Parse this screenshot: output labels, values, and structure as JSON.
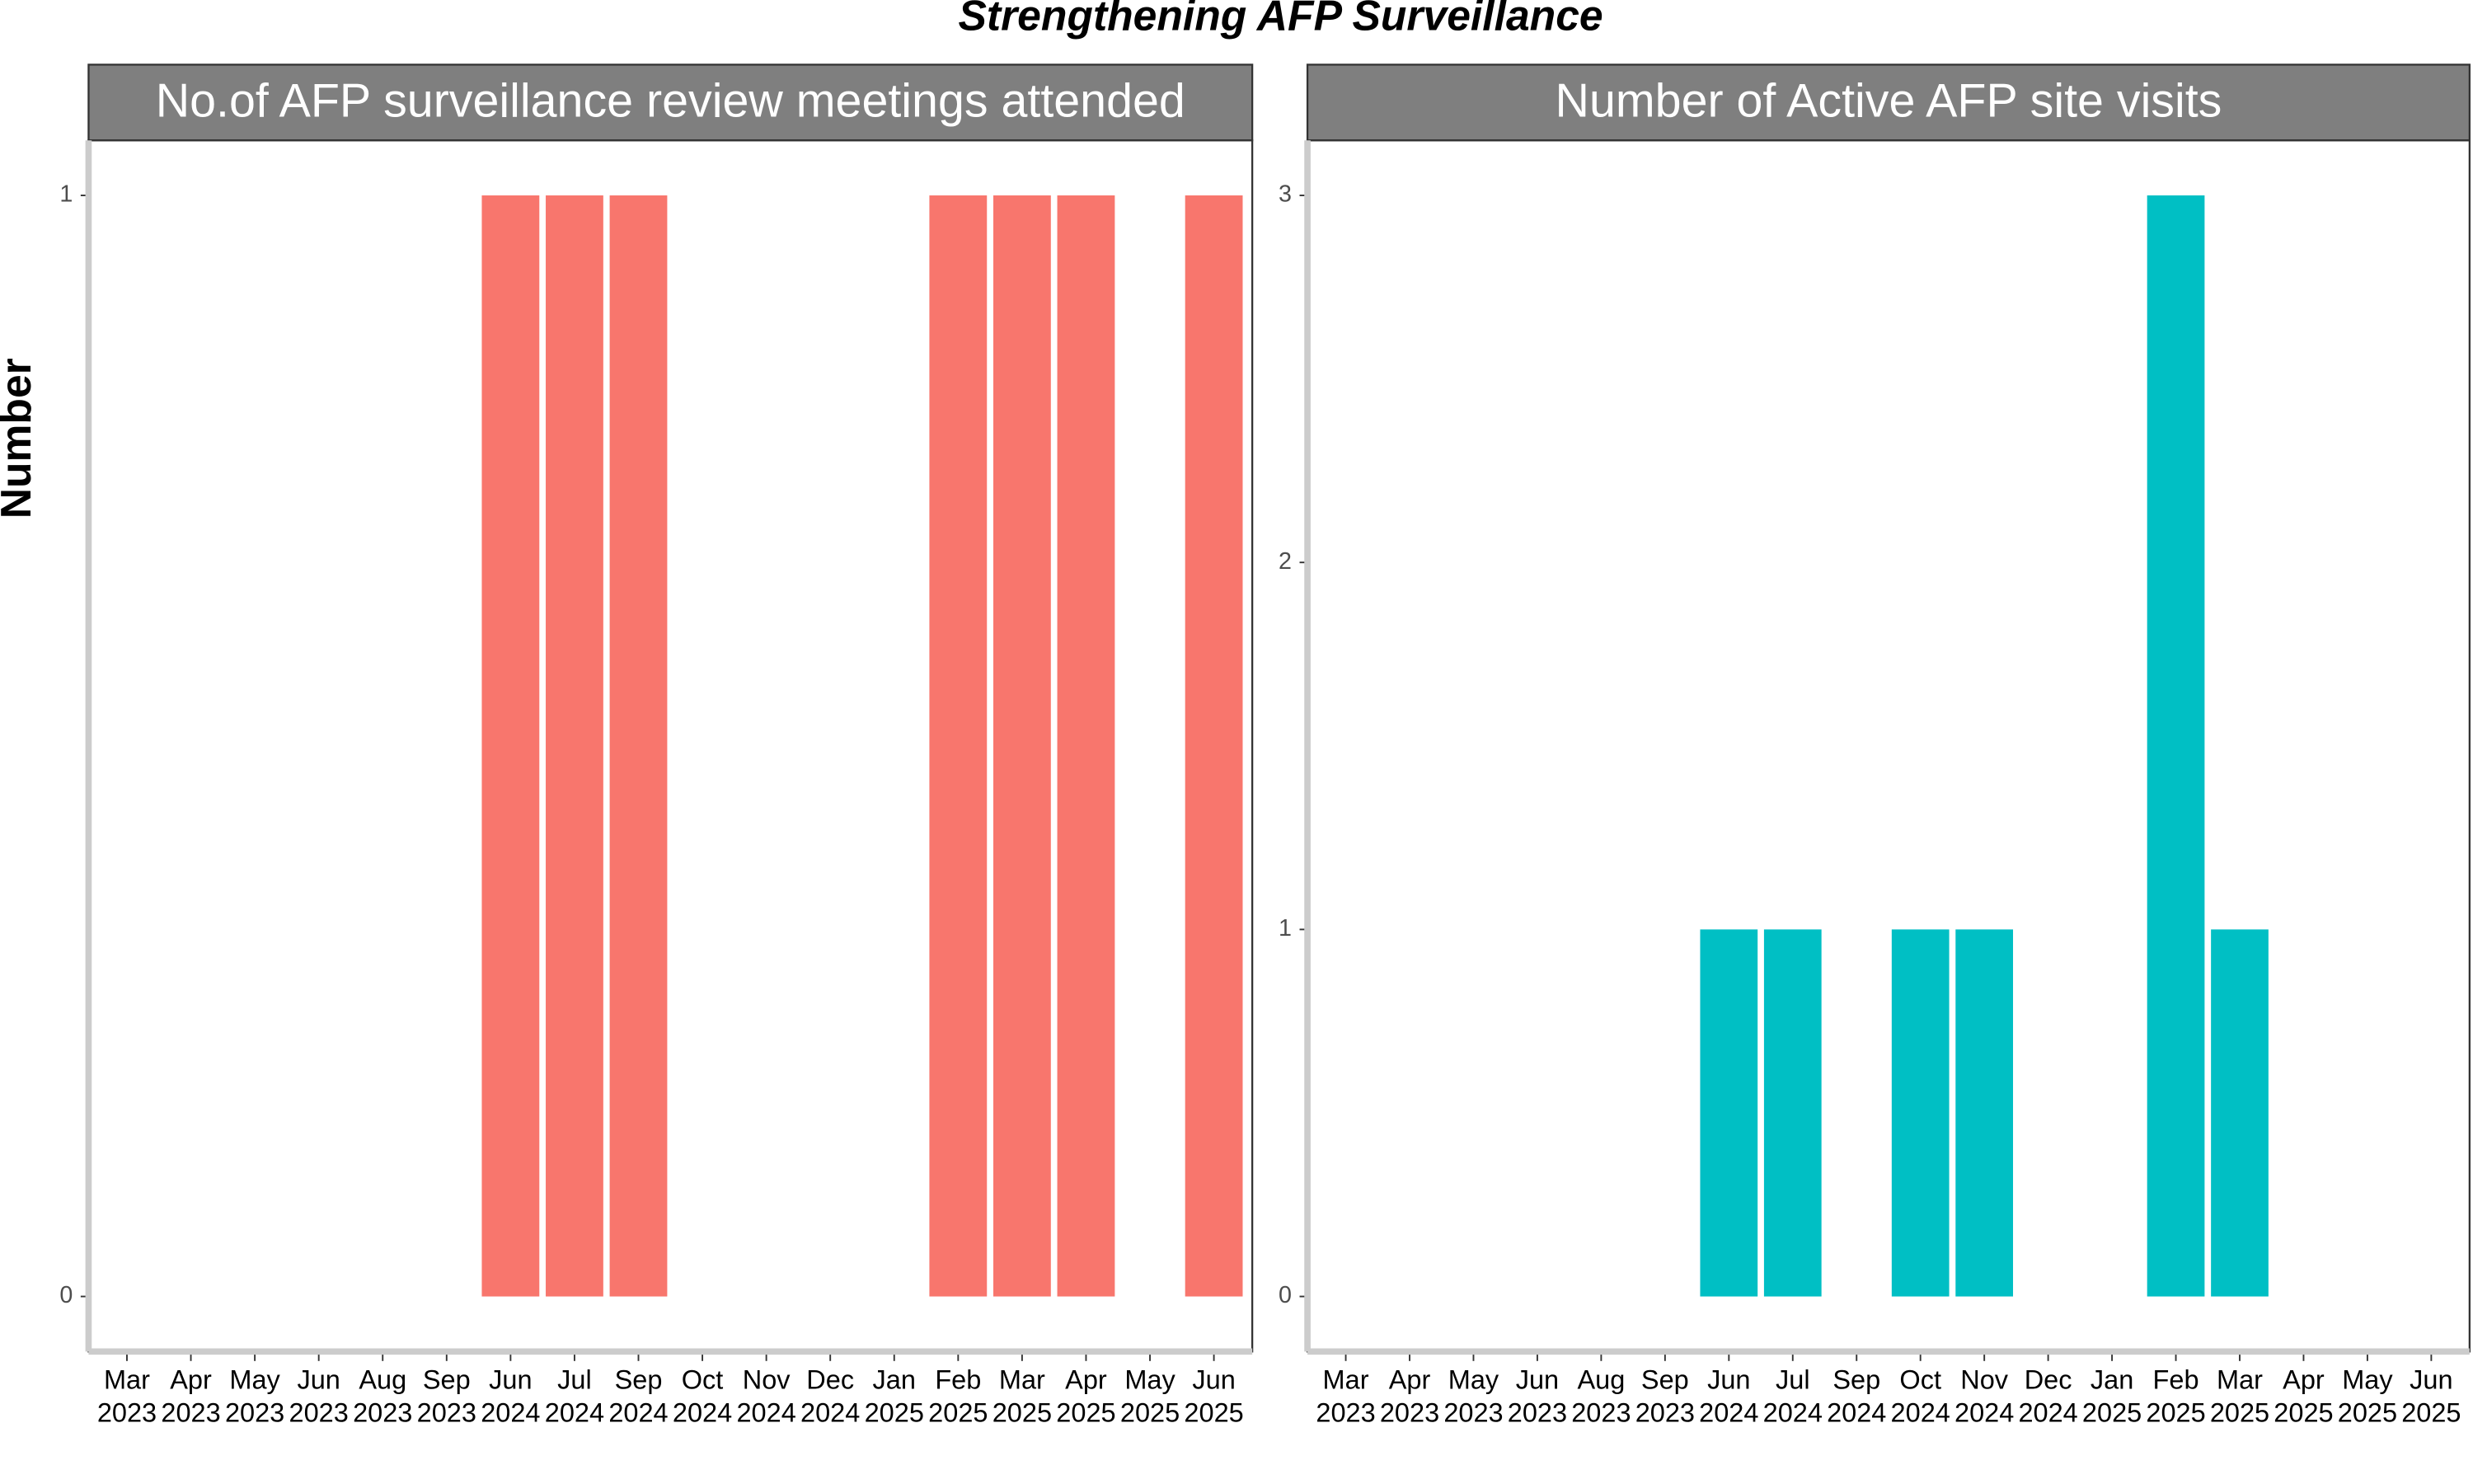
{
  "chart_data": [
    {
      "type": "bar",
      "title": "Strengthening AFP Surveillance",
      "y_label": "Number",
      "subtitle": "No.of AFP surveillance review meetings attended",
      "categories": [
        [
          "Mar",
          "2023"
        ],
        [
          "Apr",
          "2023"
        ],
        [
          "May",
          "2023"
        ],
        [
          "Jun",
          "2023"
        ],
        [
          "Aug",
          "2023"
        ],
        [
          "Sep",
          "2023"
        ],
        [
          "Jun",
          "2024"
        ],
        [
          "Jul",
          "2024"
        ],
        [
          "Sep",
          "2024"
        ],
        [
          "Oct",
          "2024"
        ],
        [
          "Nov",
          "2024"
        ],
        [
          "Dec",
          "2024"
        ],
        [
          "Jan",
          "2025"
        ],
        [
          "Feb",
          "2025"
        ],
        [
          "Mar",
          "2025"
        ],
        [
          "Apr",
          "2025"
        ],
        [
          "May",
          "2025"
        ],
        [
          "Jun",
          "2025"
        ]
      ],
      "values": [
        0,
        0,
        0,
        0,
        0,
        0,
        1,
        1,
        1,
        0,
        0,
        0,
        0,
        1,
        1,
        1,
        0,
        1
      ],
      "color": "#F8766D",
      "ylim": [
        -0.05,
        1.05
      ],
      "yticks": [
        0,
        1
      ]
    },
    {
      "type": "bar",
      "subtitle": "Number of Active AFP site visits",
      "categories": [
        [
          "Mar",
          "2023"
        ],
        [
          "Apr",
          "2023"
        ],
        [
          "May",
          "2023"
        ],
        [
          "Jun",
          "2023"
        ],
        [
          "Aug",
          "2023"
        ],
        [
          "Sep",
          "2023"
        ],
        [
          "Jun",
          "2024"
        ],
        [
          "Jul",
          "2024"
        ],
        [
          "Sep",
          "2024"
        ],
        [
          "Oct",
          "2024"
        ],
        [
          "Nov",
          "2024"
        ],
        [
          "Dec",
          "2024"
        ],
        [
          "Jan",
          "2025"
        ],
        [
          "Feb",
          "2025"
        ],
        [
          "Mar",
          "2025"
        ],
        [
          "Apr",
          "2025"
        ],
        [
          "May",
          "2025"
        ],
        [
          "Jun",
          "2025"
        ]
      ],
      "values": [
        0,
        0,
        0,
        0,
        0,
        0,
        1,
        1,
        0,
        1,
        1,
        0,
        0,
        3,
        1,
        0,
        0,
        0
      ],
      "color": "#00BFC4",
      "ylim": [
        -0.15,
        3.15
      ],
      "yticks": [
        0,
        1,
        2,
        3
      ]
    }
  ]
}
